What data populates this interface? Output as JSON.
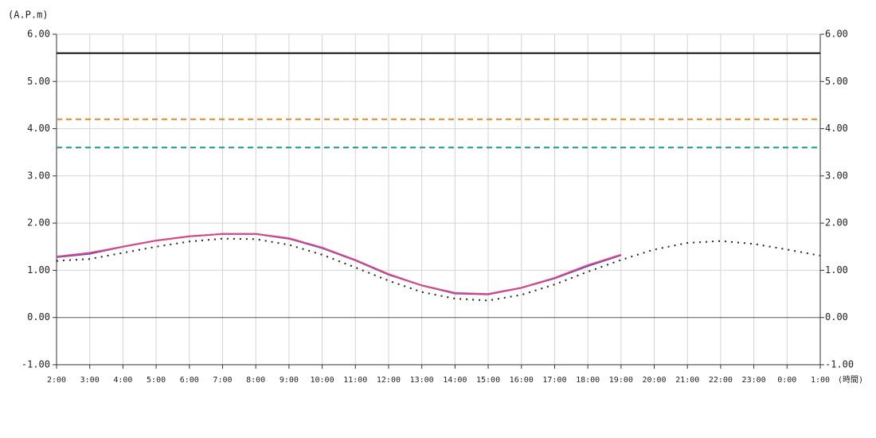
{
  "chart_data": {
    "type": "line",
    "y_label": "(A.P.m)",
    "x_label": "(時間)",
    "categories": [
      "2:00",
      "3:00",
      "4:00",
      "5:00",
      "6:00",
      "7:00",
      "8:00",
      "9:00",
      "10:00",
      "11:00",
      "12:00",
      "13:00",
      "14:00",
      "15:00",
      "16:00",
      "17:00",
      "18:00",
      "19:00",
      "20:00",
      "21:00",
      "22:00",
      "23:00",
      "0:00",
      "1:00"
    ],
    "ylim": [
      -1,
      6
    ],
    "yticks": [
      {
        "value": -1,
        "label": "-1.00"
      },
      {
        "value": 0,
        "label": "0.00"
      },
      {
        "value": 1,
        "label": "1.00"
      },
      {
        "value": 2,
        "label": "2.00"
      },
      {
        "value": 3,
        "label": "3.00"
      },
      {
        "value": 4,
        "label": "4.00"
      },
      {
        "value": 5,
        "label": "5.00"
      },
      {
        "value": 6,
        "label": "6.00"
      }
    ],
    "grid": true,
    "reference_lines": [
      {
        "value": 5.6,
        "color": "#111111",
        "style": "solid"
      },
      {
        "value": 4.2,
        "color": "#e0892e",
        "style": "dashed"
      },
      {
        "value": 3.6,
        "color": "#1a9e78",
        "style": "dashed"
      }
    ],
    "series": [
      {
        "color": "#222222",
        "style": "dotted",
        "values": [
          1.2,
          1.24,
          1.37,
          1.5,
          1.61,
          1.67,
          1.66,
          1.54,
          1.33,
          1.06,
          0.78,
          0.54,
          0.4,
          0.36,
          0.48,
          0.7,
          0.97,
          1.22,
          1.44,
          1.58,
          1.62,
          1.56,
          1.44,
          1.31
        ]
      },
      {
        "color": "#3b4fd6",
        "style": "solid",
        "values": [
          1.28,
          1.35,
          1.5,
          1.63,
          1.72,
          1.77,
          1.77,
          1.67,
          1.47,
          1.21,
          0.91,
          0.68,
          0.51,
          0.49,
          0.63,
          0.83,
          1.09,
          1.32,
          null,
          null,
          null,
          null,
          null,
          null
        ]
      },
      {
        "color": "#e0457f",
        "style": "solid",
        "values": [
          1.29,
          1.37,
          1.5,
          1.63,
          1.72,
          1.77,
          1.77,
          1.68,
          1.48,
          1.22,
          0.92,
          0.68,
          0.52,
          0.5,
          0.63,
          0.84,
          1.11,
          1.33,
          null,
          null,
          null,
          null,
          null,
          null
        ]
      }
    ]
  }
}
